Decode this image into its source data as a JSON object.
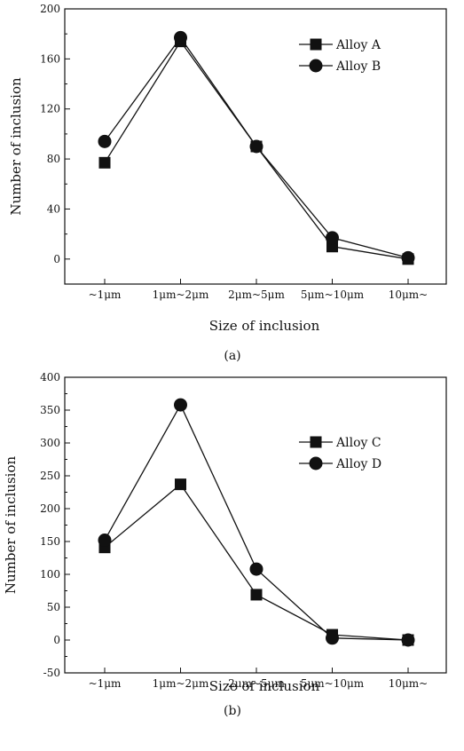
{
  "chart_data": [
    {
      "type": "line",
      "panel_caption": "(a)",
      "xlabel": "Size of inclusion",
      "ylabel": "Number of inclusion",
      "categories": [
        "~1μm",
        "1μm~2μm",
        "2μm~5μm",
        "5μm~10μm",
        "10μm~"
      ],
      "ylim": [
        -20,
        200
      ],
      "yticks": [
        0,
        40,
        80,
        120,
        160,
        200
      ],
      "legend_position": "top-right",
      "series": [
        {
          "name": "Alloy A",
          "marker": "square",
          "values": [
            77,
            174,
            90,
            10,
            0
          ]
        },
        {
          "name": "Alloy B",
          "marker": "circle",
          "values": [
            94,
            177,
            90,
            17,
            1
          ]
        }
      ]
    },
    {
      "type": "line",
      "panel_caption": "(b)",
      "xlabel": "Size of inclusion",
      "ylabel": "Number of inclusion",
      "categories": [
        "~1μm",
        "1μm~2μm",
        "2μm~5μm",
        "5μm~10μm",
        "10μm~"
      ],
      "ylim": [
        -50,
        400
      ],
      "yticks": [
        -50,
        0,
        50,
        100,
        150,
        200,
        250,
        300,
        350,
        400
      ],
      "legend_position": "top-right",
      "series": [
        {
          "name": "Alloy C",
          "marker": "square",
          "values": [
            141,
            237,
            69,
            8,
            0
          ]
        },
        {
          "name": "Alloy D",
          "marker": "circle",
          "values": [
            152,
            358,
            108,
            3,
            0
          ]
        }
      ]
    }
  ]
}
